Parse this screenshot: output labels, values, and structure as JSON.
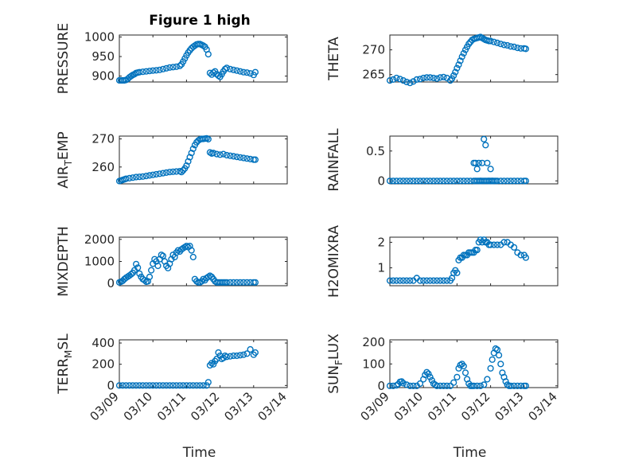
{
  "figure": {
    "title": "Figure 1 high",
    "marker_color": "#0072bd",
    "x_tick_labels": [
      "03/09",
      "03/10",
      "03/11",
      "03/12",
      "03/13",
      "03/14"
    ],
    "xlabel": "Time"
  },
  "chart_data": [
    {
      "type": "scatter",
      "ylabel": "PRESSURE",
      "ylim": [
        885,
        1005
      ],
      "yticks": [
        900,
        950,
        1000
      ],
      "xlim": [
        0,
        5
      ],
      "grid": "on",
      "x": [
        0,
        0.05,
        0.1,
        0.15,
        0.2,
        0.25,
        0.3,
        0.35,
        0.4,
        0.45,
        0.5,
        0.55,
        0.6,
        0.7,
        0.8,
        0.9,
        1.0,
        1.1,
        1.2,
        1.3,
        1.4,
        1.5,
        1.6,
        1.7,
        1.8,
        1.85,
        1.9,
        1.95,
        2.0,
        2.05,
        2.1,
        2.15,
        2.2,
        2.25,
        2.3,
        2.35,
        2.4,
        2.45,
        2.5,
        2.55,
        2.6,
        2.65,
        2.7,
        2.75,
        2.8,
        2.85,
        2.9,
        2.95,
        3.0,
        3.05,
        3.1,
        3.15,
        3.2,
        3.3,
        3.4,
        3.5,
        3.6,
        3.7,
        3.8,
        3.9,
        4.0,
        4.05
      ],
      "y": [
        889,
        889,
        889,
        889,
        890,
        893,
        897,
        900,
        903,
        905,
        908,
        909,
        910,
        911,
        912,
        913,
        914,
        915,
        916,
        918,
        920,
        922,
        923,
        924,
        926,
        930,
        937,
        945,
        953,
        960,
        966,
        971,
        975,
        978,
        981,
        982,
        982,
        980,
        978,
        975,
        968,
        956,
        908,
        904,
        909,
        912,
        905,
        901,
        898,
        905,
        912,
        918,
        921,
        918,
        916,
        914,
        912,
        910,
        909,
        907,
        903,
        910
      ]
    },
    {
      "type": "scatter",
      "ylabel": "THETA",
      "ylim": [
        263.5,
        273
      ],
      "yticks": [
        265,
        270
      ],
      "xlim": [
        0,
        5
      ],
      "grid": "on",
      "x": [
        0,
        0.1,
        0.2,
        0.3,
        0.4,
        0.5,
        0.6,
        0.7,
        0.8,
        0.9,
        1.0,
        1.1,
        1.2,
        1.3,
        1.4,
        1.5,
        1.6,
        1.7,
        1.8,
        1.85,
        1.9,
        1.95,
        2.0,
        2.05,
        2.1,
        2.15,
        2.2,
        2.25,
        2.3,
        2.35,
        2.4,
        2.45,
        2.5,
        2.55,
        2.6,
        2.65,
        2.7,
        2.75,
        2.8,
        2.85,
        2.9,
        2.95,
        3.0,
        3.1,
        3.2,
        3.3,
        3.4,
        3.5,
        3.6,
        3.7,
        3.8,
        3.9,
        4.0,
        4.05
      ],
      "y": [
        263.8,
        264.0,
        264.3,
        264.1,
        263.8,
        263.5,
        263.3,
        263.6,
        264.0,
        264.1,
        264.3,
        264.4,
        264.4,
        264.3,
        264.2,
        264.4,
        264.5,
        264.3,
        263.8,
        264.2,
        264.8,
        265.5,
        266.3,
        267.0,
        267.8,
        268.6,
        269.3,
        270.0,
        270.6,
        271.2,
        271.6,
        272.0,
        272.2,
        272.3,
        272.4,
        272.5,
        272.6,
        272.4,
        272.2,
        272.0,
        271.9,
        271.8,
        271.8,
        271.6,
        271.4,
        271.2,
        271.0,
        270.9,
        270.7,
        270.6,
        270.4,
        270.3,
        270.3,
        270.2
      ]
    },
    {
      "type": "scatter",
      "ylabel": "AIR_TEMP",
      "ylim": [
        254,
        271
      ],
      "yticks": [
        260,
        270
      ],
      "xlim": [
        0,
        5
      ],
      "grid": "on",
      "x": [
        0,
        0.05,
        0.1,
        0.15,
        0.2,
        0.3,
        0.4,
        0.5,
        0.6,
        0.7,
        0.8,
        0.9,
        1.0,
        1.1,
        1.2,
        1.3,
        1.4,
        1.5,
        1.6,
        1.7,
        1.8,
        1.85,
        1.9,
        1.95,
        2.0,
        2.05,
        2.1,
        2.15,
        2.2,
        2.25,
        2.3,
        2.35,
        2.4,
        2.45,
        2.5,
        2.55,
        2.6,
        2.65,
        2.7,
        2.75,
        2.8,
        2.9,
        3.0,
        3.1,
        3.2,
        3.3,
        3.4,
        3.5,
        3.6,
        3.7,
        3.8,
        3.9,
        4.0,
        4.05
      ],
      "y": [
        255.0,
        255.2,
        255.4,
        255.6,
        255.8,
        256.0,
        256.2,
        256.4,
        256.5,
        256.6,
        256.8,
        257.0,
        257.2,
        257.4,
        257.6,
        257.8,
        258.0,
        258.2,
        258.3,
        258.4,
        258.5,
        258.2,
        258.8,
        259.5,
        260.5,
        262.0,
        263.5,
        265.0,
        266.5,
        267.8,
        268.8,
        269.4,
        269.8,
        270.0,
        270.0,
        270.1,
        270.2,
        269.9,
        265.2,
        264.8,
        265.0,
        264.6,
        264.4,
        264.6,
        264.2,
        264.0,
        263.8,
        263.6,
        263.4,
        263.2,
        263.0,
        262.8,
        262.6,
        262.6
      ]
    },
    {
      "type": "scatter",
      "ylabel": "RAINFALL",
      "ylim": [
        -0.05,
        0.75
      ],
      "yticks": [
        0,
        0.5
      ],
      "xlim": [
        0,
        5
      ],
      "grid": "on",
      "x": [
        0,
        0.1,
        0.2,
        0.3,
        0.4,
        0.5,
        0.6,
        0.7,
        0.8,
        0.9,
        1.0,
        1.1,
        1.2,
        1.3,
        1.4,
        1.5,
        1.6,
        1.7,
        1.8,
        1.9,
        2.0,
        2.1,
        2.2,
        2.3,
        2.4,
        2.5,
        2.55,
        2.6,
        2.65,
        2.7,
        2.75,
        2.8,
        2.85,
        2.9,
        2.95,
        3.0,
        3.05,
        3.1,
        3.15,
        3.2,
        3.3,
        3.4,
        3.5,
        3.6,
        3.7,
        3.8,
        3.9,
        4.0,
        4.05,
        2.5,
        2.55,
        2.6,
        2.65,
        2.7,
        2.75,
        2.8,
        2.85,
        2.9,
        2.95,
        3.0,
        3.05
      ],
      "y": [
        0,
        0,
        0,
        0,
        0,
        0,
        0,
        0,
        0,
        0,
        0,
        0,
        0,
        0,
        0,
        0,
        0,
        0,
        0,
        0,
        0,
        0,
        0,
        0,
        0,
        0,
        0,
        0,
        0,
        0,
        0,
        0,
        0,
        0,
        0,
        0,
        0,
        0,
        0,
        0,
        0,
        0,
        0,
        0,
        0,
        0,
        0,
        0,
        0,
        0.3,
        0.3,
        0.2,
        0.3,
        0,
        0.3,
        0.7,
        0.6,
        0.3,
        0,
        0.2,
        0
      ]
    },
    {
      "type": "scatter",
      "ylabel": "MIXDEPTH",
      "ylim": [
        -100,
        2100
      ],
      "yticks": [
        0,
        1000,
        2000
      ],
      "xlim": [
        0,
        5
      ],
      "grid": "on",
      "x": [
        0,
        0.05,
        0.1,
        0.15,
        0.2,
        0.25,
        0.3,
        0.35,
        0.4,
        0.45,
        0.5,
        0.55,
        0.6,
        0.65,
        0.7,
        0.75,
        0.8,
        0.85,
        0.9,
        0.95,
        1.0,
        1.05,
        1.1,
        1.15,
        1.2,
        1.25,
        1.3,
        1.35,
        1.4,
        1.45,
        1.5,
        1.55,
        1.6,
        1.65,
        1.7,
        1.75,
        1.8,
        1.85,
        1.9,
        1.95,
        2.0,
        2.05,
        2.1,
        2.15,
        2.2,
        2.25,
        2.3,
        2.35,
        2.4,
        2.45,
        2.5,
        2.55,
        2.6,
        2.65,
        2.7,
        2.75,
        2.8,
        2.85,
        2.9,
        2.95,
        3.0,
        3.05,
        3.1,
        3.15,
        3.2,
        3.3,
        3.4,
        3.5,
        3.6,
        3.7,
        3.8,
        3.9,
        4.0,
        4.05
      ],
      "y": [
        50,
        80,
        120,
        200,
        260,
        310,
        360,
        420,
        480,
        600,
        880,
        720,
        450,
        300,
        200,
        150,
        80,
        100,
        300,
        600,
        900,
        1100,
        1000,
        800,
        1100,
        1300,
        1250,
        1000,
        800,
        700,
        900,
        1100,
        1300,
        1200,
        1400,
        1500,
        1450,
        1550,
        1600,
        1650,
        1700,
        1650,
        1700,
        1500,
        1200,
        200,
        100,
        50,
        50,
        100,
        200,
        150,
        250,
        300,
        350,
        300,
        200,
        100,
        50,
        50,
        50,
        50,
        50,
        50,
        50,
        50,
        50,
        50,
        50,
        50,
        50,
        50,
        50,
        50
      ]
    },
    {
      "type": "scatter",
      "ylabel": "H2OMIXRA",
      "ylim": [
        0.3,
        2.2
      ],
      "yticks": [
        1,
        2
      ],
      "xlim": [
        0,
        5
      ],
      "grid": "on",
      "x": [
        0,
        0.1,
        0.2,
        0.3,
        0.4,
        0.5,
        0.6,
        0.7,
        0.8,
        0.9,
        1.0,
        1.1,
        1.2,
        1.3,
        1.4,
        1.5,
        1.6,
        1.7,
        1.8,
        1.85,
        1.9,
        1.95,
        2.0,
        2.05,
        2.1,
        2.15,
        2.2,
        2.25,
        2.3,
        2.35,
        2.4,
        2.45,
        2.5,
        2.55,
        2.6,
        2.65,
        2.7,
        2.75,
        2.8,
        2.85,
        2.9,
        2.95,
        3.0,
        3.1,
        3.2,
        3.3,
        3.4,
        3.5,
        3.6,
        3.7,
        3.8,
        3.9,
        4.0,
        4.05
      ],
      "y": [
        0.5,
        0.5,
        0.5,
        0.5,
        0.5,
        0.5,
        0.5,
        0.5,
        0.6,
        0.5,
        0.5,
        0.5,
        0.5,
        0.5,
        0.5,
        0.5,
        0.5,
        0.5,
        0.5,
        0.6,
        0.8,
        0.9,
        0.8,
        1.3,
        1.4,
        1.4,
        1.5,
        1.5,
        1.5,
        1.6,
        1.6,
        1.6,
        1.6,
        1.7,
        1.7,
        2.0,
        2.1,
        2.0,
        2.1,
        2.0,
        2.0,
        1.9,
        1.9,
        1.9,
        1.9,
        1.9,
        2.0,
        2.0,
        1.9,
        1.8,
        1.6,
        1.5,
        1.5,
        1.4
      ]
    },
    {
      "type": "scatter",
      "ylabel": "TERR_MSL",
      "ylim": [
        -20,
        430
      ],
      "yticks": [
        0,
        200,
        400
      ],
      "xlim": [
        0,
        5
      ],
      "grid": "on",
      "x": [
        0,
        0.1,
        0.2,
        0.3,
        0.4,
        0.5,
        0.6,
        0.7,
        0.8,
        0.9,
        1.0,
        1.1,
        1.2,
        1.3,
        1.4,
        1.5,
        1.6,
        1.7,
        1.8,
        1.9,
        2.0,
        2.1,
        2.2,
        2.3,
        2.4,
        2.5,
        2.6,
        2.65,
        2.7,
        2.75,
        2.8,
        2.85,
        2.9,
        2.95,
        3.0,
        3.05,
        3.1,
        3.15,
        3.2,
        3.3,
        3.4,
        3.5,
        3.6,
        3.7,
        3.8,
        3.9,
        4.0,
        4.05
      ],
      "y": [
        0,
        0,
        0,
        0,
        0,
        0,
        0,
        0,
        0,
        0,
        0,
        0,
        0,
        0,
        0,
        0,
        0,
        0,
        0,
        0,
        0,
        0,
        0,
        0,
        0,
        0,
        0,
        30,
        190,
        210,
        200,
        230,
        250,
        310,
        280,
        250,
        260,
        280,
        270,
        275,
        280,
        280,
        285,
        290,
        300,
        340,
        290,
        310
      ]
    },
    {
      "type": "scatter",
      "ylabel": "SUN_FLUX",
      "ylim": [
        -8,
        210
      ],
      "yticks": [
        0,
        100,
        200
      ],
      "xlim": [
        0,
        5
      ],
      "grid": "on",
      "x": [
        0,
        0.1,
        0.2,
        0.25,
        0.3,
        0.35,
        0.4,
        0.5,
        0.6,
        0.7,
        0.8,
        0.9,
        1.0,
        1.05,
        1.1,
        1.15,
        1.2,
        1.25,
        1.3,
        1.35,
        1.4,
        1.5,
        1.6,
        1.7,
        1.8,
        1.9,
        2.0,
        2.05,
        2.1,
        2.15,
        2.2,
        2.25,
        2.3,
        2.35,
        2.4,
        2.45,
        2.5,
        2.6,
        2.7,
        2.8,
        2.9,
        3.0,
        3.05,
        3.1,
        3.15,
        3.2,
        3.25,
        3.3,
        3.35,
        3.4,
        3.45,
        3.5,
        3.55,
        3.6,
        3.7,
        3.8,
        3.9,
        4.0,
        4.05
      ],
      "y": [
        0,
        0,
        2,
        8,
        18,
        20,
        12,
        5,
        0,
        0,
        0,
        10,
        30,
        50,
        62,
        55,
        40,
        25,
        10,
        5,
        0,
        0,
        0,
        0,
        0,
        15,
        40,
        80,
        95,
        100,
        90,
        60,
        30,
        10,
        0,
        0,
        0,
        0,
        0,
        5,
        30,
        80,
        120,
        150,
        170,
        165,
        140,
        100,
        60,
        40,
        20,
        5,
        0,
        0,
        0,
        0,
        0,
        0,
        0
      ]
    }
  ]
}
